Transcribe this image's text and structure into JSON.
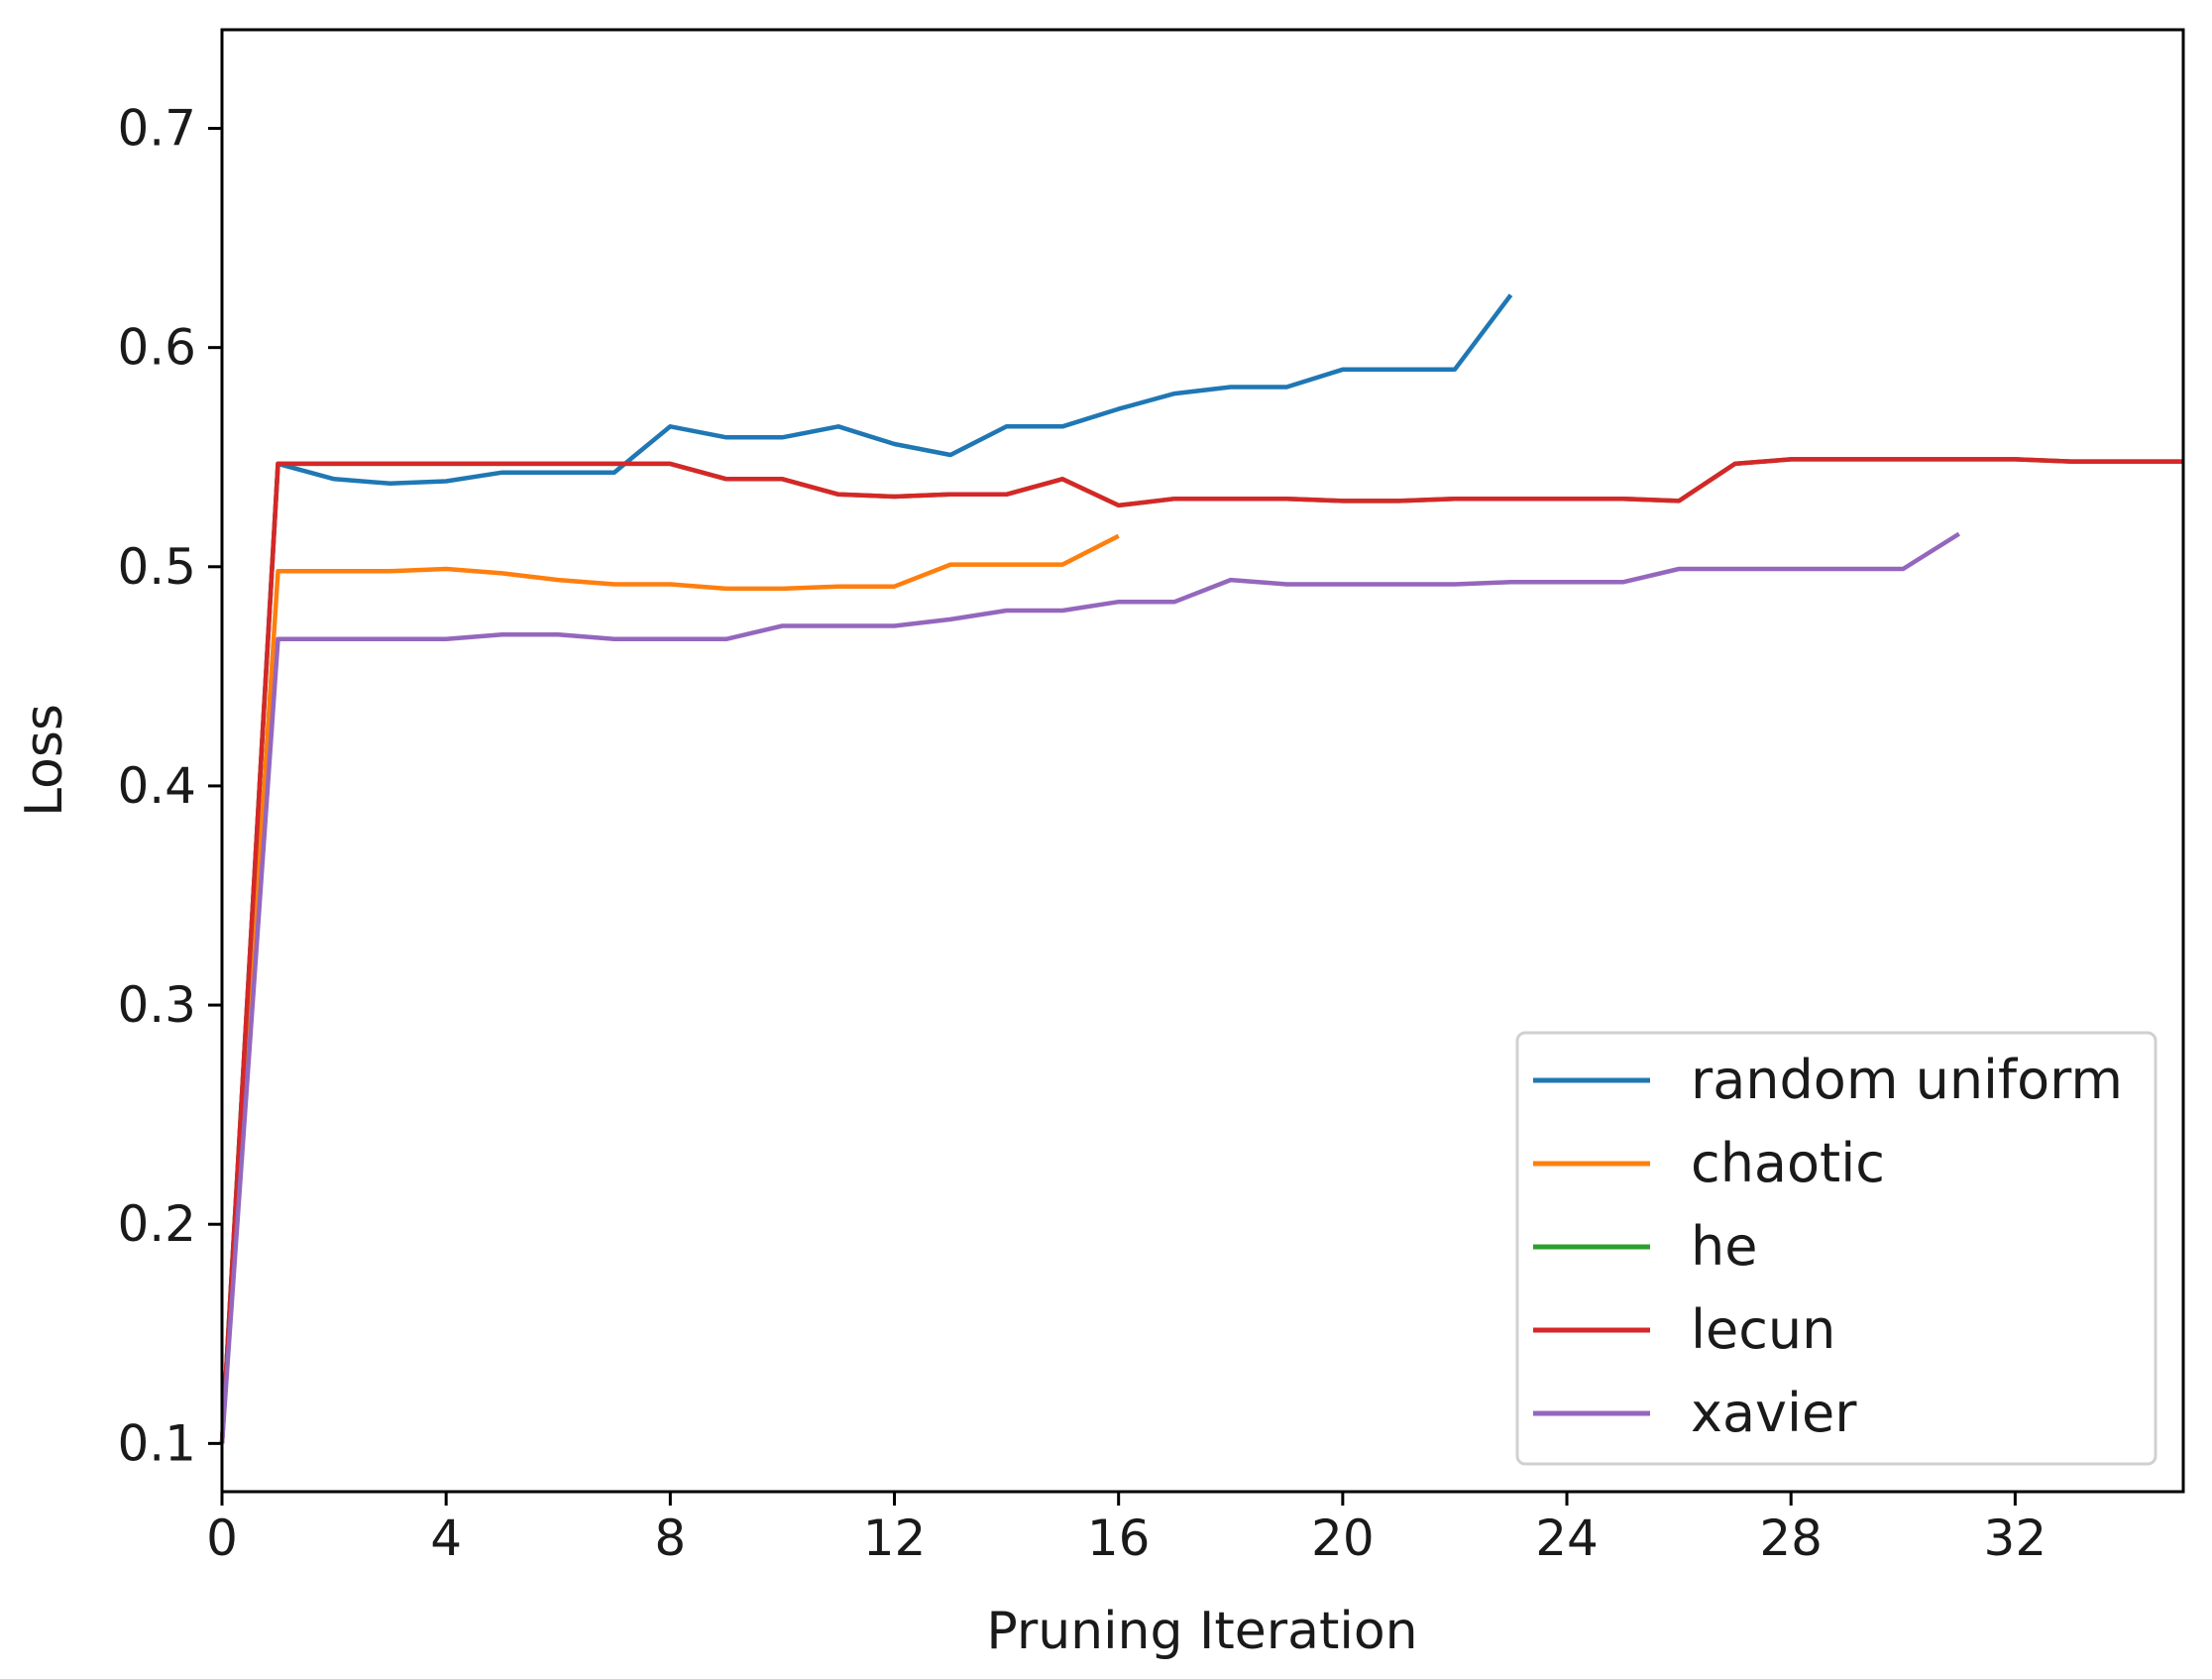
{
  "chart_data": {
    "type": "line",
    "title": "",
    "xlabel": "Pruning Iteration",
    "ylabel": "Loss",
    "xlim": [
      0,
      35
    ],
    "ylim": [
      0.078,
      0.745
    ],
    "xticks": [
      0,
      4,
      8,
      12,
      16,
      20,
      24,
      28,
      32
    ],
    "yticks": [
      0.1,
      0.2,
      0.3,
      0.4,
      0.5,
      0.6,
      0.7
    ],
    "xtick_labels": [
      "0",
      "4",
      "8",
      "12",
      "16",
      "20",
      "24",
      "28",
      "32"
    ],
    "ytick_labels": [
      "0.1",
      "0.2",
      "0.3",
      "0.4",
      "0.5",
      "0.6",
      "0.7"
    ],
    "grid": false,
    "legend_position": "lower-right",
    "series": [
      {
        "name": "random uniform",
        "color": "#1f77b4",
        "x": [
          0,
          1,
          2,
          3,
          4,
          5,
          6,
          7,
          8,
          9,
          10,
          11,
          12,
          13,
          14,
          15,
          16,
          17,
          18,
          19,
          20,
          21,
          22,
          23
        ],
        "y": [
          0.1,
          0.547,
          0.54,
          0.538,
          0.539,
          0.543,
          0.543,
          0.543,
          0.564,
          0.559,
          0.559,
          0.564,
          0.556,
          0.551,
          0.564,
          0.564,
          0.572,
          0.579,
          0.582,
          0.582,
          0.59,
          0.59,
          0.59,
          0.624
        ]
      },
      {
        "name": "chaotic",
        "color": "#ff7f0e",
        "x": [
          0,
          1,
          2,
          3,
          4,
          5,
          6,
          7,
          8,
          9,
          10,
          11,
          12,
          13,
          14,
          15,
          16
        ],
        "y": [
          0.1,
          0.498,
          0.498,
          0.498,
          0.499,
          0.497,
          0.494,
          0.492,
          0.492,
          0.49,
          0.49,
          0.491,
          0.491,
          0.501,
          0.501,
          0.501,
          0.514
        ]
      },
      {
        "name": "he",
        "color": "#2ca02c",
        "x": [
          0,
          1,
          2,
          3,
          4,
          5,
          6,
          7,
          8,
          9,
          10,
          11,
          12,
          13,
          14,
          15,
          16,
          17,
          18,
          19,
          20,
          21,
          22,
          23,
          24,
          25,
          26,
          27,
          28,
          29,
          30,
          31,
          32,
          33,
          34,
          35
        ],
        "y": [
          0.1,
          0.547,
          0.547,
          0.547,
          0.547,
          0.547,
          0.547,
          0.547,
          0.547,
          0.54,
          0.54,
          0.533,
          0.532,
          0.533,
          0.533,
          0.54,
          0.528,
          0.531,
          0.531,
          0.531,
          0.53,
          0.53,
          0.531,
          0.531,
          0.531,
          0.531,
          0.53,
          0.547,
          0.549,
          0.549,
          0.549,
          0.549,
          0.549,
          0.548,
          0.548,
          0.548
        ]
      },
      {
        "name": "lecun",
        "color": "#d62728",
        "x": [
          0,
          1,
          2,
          3,
          4,
          5,
          6,
          7,
          8,
          9,
          10,
          11,
          12,
          13,
          14,
          15,
          16,
          17,
          18,
          19,
          20,
          21,
          22,
          23,
          24,
          25,
          26,
          27,
          28,
          29,
          30,
          31,
          32,
          33,
          34,
          35
        ],
        "y": [
          0.1,
          0.547,
          0.547,
          0.547,
          0.547,
          0.547,
          0.547,
          0.547,
          0.547,
          0.54,
          0.54,
          0.533,
          0.532,
          0.533,
          0.533,
          0.54,
          0.528,
          0.531,
          0.531,
          0.531,
          0.53,
          0.53,
          0.531,
          0.531,
          0.531,
          0.531,
          0.53,
          0.547,
          0.549,
          0.549,
          0.549,
          0.549,
          0.549,
          0.548,
          0.548,
          0.548
        ]
      },
      {
        "name": "xavier",
        "color": "#9467bd",
        "x": [
          0,
          1,
          2,
          3,
          4,
          5,
          6,
          7,
          8,
          9,
          10,
          11,
          12,
          13,
          14,
          15,
          16,
          17,
          18,
          19,
          20,
          21,
          22,
          23,
          24,
          25,
          26,
          27,
          28,
          29,
          30,
          31
        ],
        "y": [
          0.1,
          0.467,
          0.467,
          0.467,
          0.467,
          0.469,
          0.469,
          0.467,
          0.467,
          0.467,
          0.473,
          0.473,
          0.473,
          0.476,
          0.48,
          0.48,
          0.484,
          0.484,
          0.494,
          0.492,
          0.492,
          0.492,
          0.492,
          0.493,
          0.493,
          0.493,
          0.499,
          0.499,
          0.499,
          0.499,
          0.499,
          0.515
        ]
      }
    ]
  }
}
